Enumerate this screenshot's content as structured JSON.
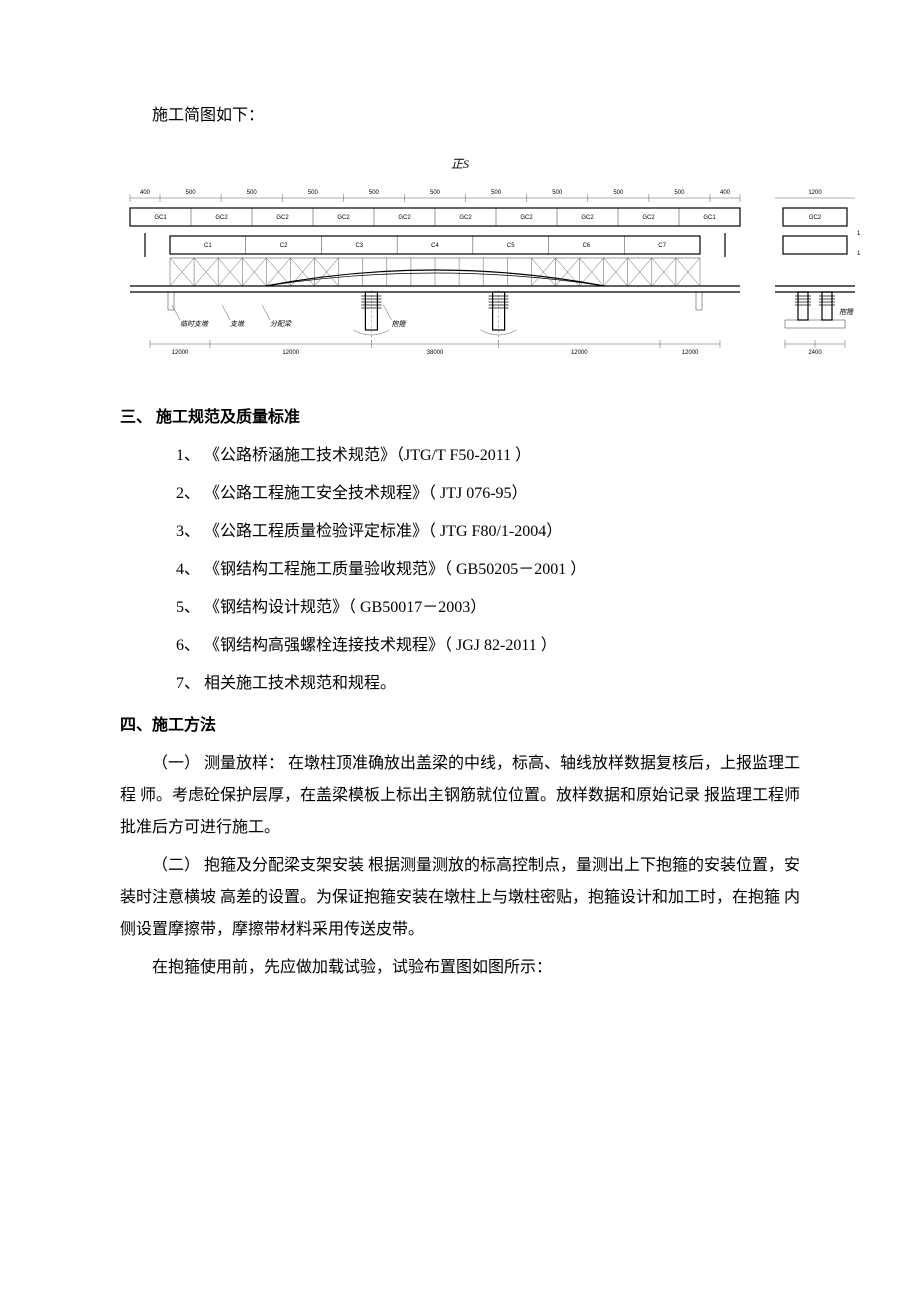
{
  "intro": "施工简图如下：",
  "diagram": {
    "title_label": "正S",
    "top_dimensions": [
      "400",
      "500",
      "500",
      "500",
      "500",
      "500",
      "500",
      "500",
      "500",
      "500",
      "400"
    ],
    "gc_labels": [
      "GC1",
      "GC2",
      "GC2",
      "GC2",
      "GC2",
      "GC2",
      "GC2",
      "GC2",
      "GC2",
      "GC1"
    ],
    "c_labels": [
      "C1",
      "C2",
      "C3",
      "C4",
      "C5",
      "C6",
      "C7"
    ],
    "right_dim1": "1200",
    "right_dim2": "1200",
    "right_bottom": "2400",
    "right_gc": "GC2",
    "right_label": "抱箍",
    "bottom_notes": [
      "临时支墩",
      "支墩",
      "分配梁",
      "抱箍"
    ],
    "bottom_dims": [
      "12000",
      "12000",
      "38000",
      "12000",
      "12000"
    ],
    "colors": {
      "line": "#000000",
      "thin_line": "#333333",
      "bg": "#ffffff",
      "arch": "#000000"
    },
    "line_width_main": 1.2,
    "line_width_thin": 0.4
  },
  "section3": {
    "heading": "三、 施工规范及质量标准",
    "items": [
      "1、  《公路桥涵施工技术规范》（JTG/T F50-2011 ）",
      "2、  《公路工程施工安全技术规程》（ JTJ 076-95）",
      "3、  《公路工程质量检验评定标准》（ JTG F80/1-2004）",
      "4、  《钢结构工程施工质量验收规范》（ GB50205－2001 ）",
      "5、  《钢结构设计规范》（ GB50017－2003）",
      "6、  《钢结构高强螺栓连接技术规程》（ JGJ 82-2011 ）",
      "7、  相关施工技术规范和规程。"
    ]
  },
  "section4": {
    "heading": "四、施工方法",
    "paragraphs": [
      "（一）   测量放样：  在墩柱顶准确放出盖梁的中线，标高、轴线放样数据复核后，上报监理工程 师。考虑砼保护层厚，在盖梁模板上标出主钢筋就位位置。放样数据和原始记录 报监理工程师批准后方可进行施工。",
      "（二）   抱箍及分配梁支架安装 根据测量测放的标高控制点，量测出上下抱箍的安装位置，安装时注意横坡 高差的设置。为保证抱箍安装在墩柱上与墩柱密贴，抱箍设计和加工时，在抱箍 内侧设置摩擦带，摩擦带材料采用传送皮带。",
      "在抱箍使用前，先应做加载试验，试验布置图如图所示："
    ]
  }
}
